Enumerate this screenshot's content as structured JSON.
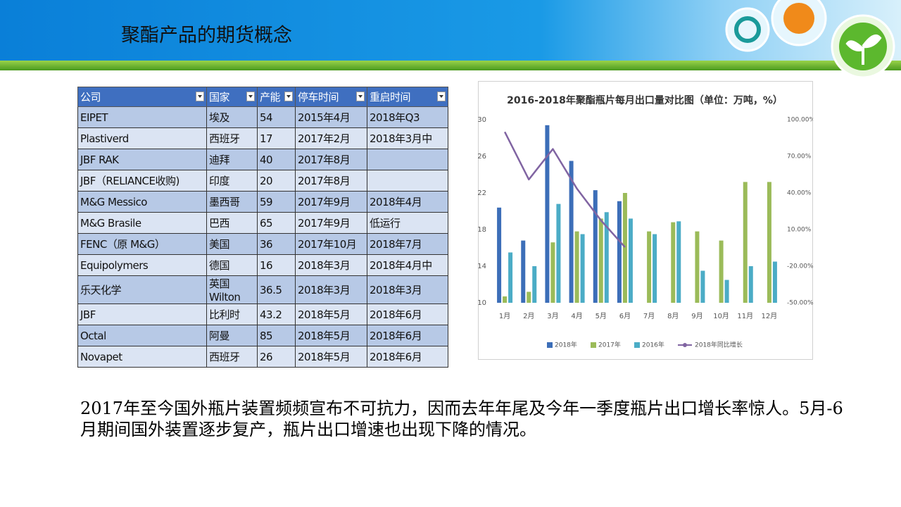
{
  "header": {
    "title": "聚酯产品的期货概念"
  },
  "table": {
    "columns": [
      "公司",
      "国家",
      "产能",
      "停车时间",
      "重启时间"
    ],
    "rows": [
      [
        "EIPET",
        "埃及",
        "54",
        "2015年4月",
        "2018年Q3"
      ],
      [
        "Plastiverd",
        "西班牙",
        "17",
        "2017年2月",
        "2018年3月中"
      ],
      [
        "JBF RAK",
        "迪拜",
        "40",
        "2017年8月",
        null
      ],
      [
        "JBF（RELIANCE收购)",
        "印度",
        "20",
        "2017年8月",
        null
      ],
      [
        "M&G Messico",
        "墨西哥",
        "59",
        "2017年9月",
        "2018年4月"
      ],
      [
        "M&G Brasile",
        "巴西",
        "65",
        "2017年9月",
        "低运行"
      ],
      [
        "FENC（原 M&G）",
        "美国",
        "36",
        "2017年10月",
        "2018年7月"
      ],
      [
        "Equipolymers",
        "德国",
        "16",
        "2018年3月",
        "2018年4月中"
      ],
      [
        "乐天化学",
        "英国Wilton",
        "36.5",
        "2018年3月",
        "2018年3月"
      ],
      [
        "JBF",
        "比利时",
        "43.2",
        "2018年5月",
        "2018年6月"
      ],
      [
        "Octal",
        "阿曼",
        "85",
        "2018年5月",
        "2018年6月"
      ],
      [
        "Novapet",
        "西班牙",
        "26",
        "2018年5月",
        "2018年6月"
      ]
    ]
  },
  "chart_data": {
    "type": "bar-line",
    "title": "2016-2018年聚酯瓶片每月出口量对比图（单位：万吨，%）",
    "categories": [
      "1月",
      "2月",
      "3月",
      "4月",
      "5月",
      "6月",
      "7月",
      "8月",
      "9月",
      "10月",
      "11月",
      "12月"
    ],
    "series": [
      {
        "name": "2018年",
        "type": "bar",
        "color": "#3c6eb8",
        "values": [
          20.4,
          16.8,
          29.4,
          25.5,
          22.3,
          21.1,
          null,
          null,
          null,
          null,
          null,
          null
        ]
      },
      {
        "name": "2017年",
        "type": "bar",
        "color": "#9bbb59",
        "values": [
          10.7,
          11.2,
          16.6,
          17.8,
          19.2,
          22.0,
          17.8,
          18.8,
          17.8,
          16.8,
          23.2,
          23.2
        ]
      },
      {
        "name": "2016年",
        "type": "bar",
        "color": "#4bacc6",
        "values": [
          15.5,
          14.0,
          20.8,
          17.5,
          19.9,
          19.2,
          17.5,
          18.9,
          13.5,
          12.5,
          14.0,
          14.5
        ]
      },
      {
        "name": "2018年同比增长",
        "type": "line",
        "axis": "y2",
        "color": "#8064a2",
        "values": [
          90,
          51,
          76,
          43.5,
          17.5,
          -4.5,
          null,
          null,
          null,
          null,
          null,
          null
        ]
      }
    ],
    "ylim": [
      10,
      30
    ],
    "yticks": [
      10,
      14,
      18,
      22,
      26,
      30
    ],
    "y2lim": [
      -50,
      100
    ],
    "y2ticks": [
      {
        "value": -50,
        "label": "-50.00%"
      },
      {
        "value": -20,
        "label": "-20.00%"
      },
      {
        "value": 10,
        "label": "10.00%"
      },
      {
        "value": 40,
        "label": "40.00%"
      },
      {
        "value": 70,
        "label": "70.00%"
      },
      {
        "value": 100,
        "label": "100.00%"
      }
    ],
    "grid": false,
    "legend": "bottom"
  },
  "text": "2017年至今国外瓶片装置频频宣布不可抗力，因而去年年尾及今年一季度瓶片出口增长率惊人。5月-6月期间国外装置逐步复产，瓶片出口增速也出现下降的情况。"
}
